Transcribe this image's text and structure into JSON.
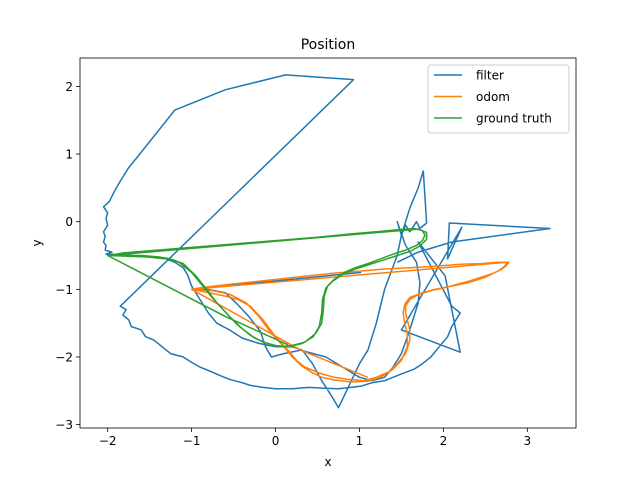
{
  "chart_data": {
    "type": "line",
    "title": "Position",
    "xlabel": "x",
    "ylabel": "y",
    "xlim": [
      -2.33,
      3.58
    ],
    "ylim": [
      -3.05,
      2.42
    ],
    "xticks": [
      -2,
      -1,
      0,
      1,
      2,
      3
    ],
    "yticks": [
      -3,
      -2,
      -1,
      0,
      1,
      2
    ],
    "grid": false,
    "legend_position": "upper-right",
    "series": [
      {
        "name": "filter",
        "color": "#1f77b4",
        "stroke_width": 1.5,
        "points": [
          [
            1.02,
            -0.75
          ],
          [
            -1.0,
            -1.0
          ],
          [
            -0.82,
            -1.0
          ],
          [
            -0.6,
            -1.05
          ],
          [
            -0.47,
            -1.2
          ],
          [
            -0.32,
            -1.4
          ],
          [
            -0.18,
            -1.62
          ],
          [
            -0.12,
            -1.85
          ],
          [
            -0.05,
            -2.0
          ],
          [
            0.1,
            -1.95
          ],
          [
            0.3,
            -1.9
          ],
          [
            0.45,
            -1.95
          ],
          [
            0.6,
            -2.0
          ],
          [
            0.8,
            -2.15
          ],
          [
            1.0,
            -2.3
          ],
          [
            1.15,
            -2.35
          ],
          [
            1.3,
            -2.3
          ],
          [
            1.4,
            -2.15
          ],
          [
            1.5,
            -1.95
          ],
          [
            1.6,
            -1.6
          ],
          [
            1.7,
            -1.2
          ],
          [
            1.72,
            -0.9
          ],
          [
            1.68,
            -0.6
          ],
          [
            1.55,
            -0.35
          ],
          [
            1.45,
            0.0
          ],
          [
            1.5,
            -0.2
          ],
          [
            1.55,
            -0.05
          ],
          [
            1.6,
            -0.15
          ],
          [
            1.68,
            0.0
          ],
          [
            1.72,
            -0.1
          ],
          [
            1.8,
            -0.02
          ],
          [
            1.76,
            0.75
          ],
          [
            1.7,
            0.5
          ],
          [
            1.6,
            0.2
          ],
          [
            1.5,
            -0.2
          ],
          [
            1.45,
            -0.5
          ],
          [
            1.3,
            -1.0
          ],
          [
            1.2,
            -1.5
          ],
          [
            1.1,
            -1.9
          ],
          [
            1.0,
            -2.1
          ],
          [
            0.75,
            -2.75
          ],
          [
            0.68,
            -2.6
          ],
          [
            0.55,
            -2.35
          ],
          [
            0.44,
            -2.1
          ],
          [
            0.32,
            -1.9
          ],
          [
            0.2,
            -1.85
          ],
          [
            0.0,
            -1.85
          ],
          [
            -0.2,
            -1.8
          ],
          [
            -0.4,
            -1.72
          ],
          [
            -0.55,
            -1.6
          ],
          [
            -0.7,
            -1.5
          ],
          [
            -0.8,
            -1.35
          ],
          [
            -0.9,
            -1.15
          ],
          [
            -1.0,
            -0.95
          ],
          [
            -1.05,
            -0.78
          ],
          [
            -1.1,
            -0.68
          ],
          [
            -1.2,
            -0.6
          ],
          [
            -1.3,
            -0.55
          ],
          [
            -1.5,
            -0.52
          ],
          [
            -1.7,
            -0.5
          ],
          [
            -1.9,
            -0.48
          ],
          [
            -2.02,
            -0.48
          ],
          [
            -1.95,
            -0.45
          ],
          [
            -2.03,
            -0.42
          ],
          [
            -2.02,
            -0.35
          ],
          [
            -2.05,
            -0.3
          ],
          [
            -2.03,
            -0.22
          ],
          [
            -2.05,
            -0.15
          ],
          [
            -2.0,
            -0.05
          ],
          [
            -2.02,
            0.05
          ],
          [
            -2.0,
            0.13
          ],
          [
            -2.05,
            0.22
          ],
          [
            -1.98,
            0.3
          ],
          [
            -1.92,
            0.45
          ],
          [
            -1.85,
            0.6
          ],
          [
            -1.75,
            0.8
          ],
          [
            -1.65,
            0.95
          ],
          [
            -1.2,
            1.65
          ],
          [
            -0.6,
            1.95
          ],
          [
            0.12,
            2.17
          ],
          [
            0.93,
            2.1
          ],
          [
            -1.85,
            -1.25
          ],
          [
            -1.78,
            -1.3
          ],
          [
            -1.82,
            -1.38
          ],
          [
            -1.75,
            -1.45
          ],
          [
            -1.72,
            -1.55
          ],
          [
            -1.6,
            -1.6
          ],
          [
            -1.55,
            -1.7
          ],
          [
            -1.45,
            -1.75
          ],
          [
            -1.35,
            -1.85
          ],
          [
            -1.25,
            -1.95
          ],
          [
            -1.1,
            -2.0
          ],
          [
            -1.0,
            -2.08
          ],
          [
            -0.9,
            -2.15
          ],
          [
            -0.8,
            -2.2
          ],
          [
            -0.65,
            -2.28
          ],
          [
            -0.55,
            -2.33
          ],
          [
            -0.4,
            -2.38
          ],
          [
            -0.3,
            -2.42
          ],
          [
            -0.15,
            -2.45
          ],
          [
            0.0,
            -2.47
          ],
          [
            0.2,
            -2.47
          ],
          [
            0.4,
            -2.45
          ],
          [
            0.55,
            -2.46
          ],
          [
            0.75,
            -2.47
          ],
          [
            0.9,
            -2.45
          ],
          [
            1.02,
            -2.43
          ],
          [
            1.15,
            -2.38
          ],
          [
            1.3,
            -2.35
          ],
          [
            1.5,
            -2.25
          ],
          [
            1.65,
            -2.18
          ],
          [
            1.75,
            -2.1
          ],
          [
            1.85,
            -2.0
          ],
          [
            1.95,
            -1.85
          ],
          [
            2.05,
            -1.7
          ],
          [
            2.1,
            -1.55
          ],
          [
            2.15,
            -1.45
          ],
          [
            2.2,
            -1.35
          ],
          [
            2.1,
            -1.25
          ],
          [
            1.7,
            -0.3
          ],
          [
            2.02,
            -0.8
          ],
          [
            2.2,
            -1.93
          ],
          [
            1.5,
            -1.6
          ],
          [
            2.22,
            -0.08
          ],
          [
            2.05,
            -0.55
          ],
          [
            2.07,
            -0.02
          ],
          [
            3.27,
            -0.1
          ],
          [
            2.1,
            -0.3
          ],
          [
            1.7,
            -0.45
          ],
          [
            1.45,
            -0.6
          ]
        ]
      },
      {
        "name": "odom",
        "color": "#ff7f0e",
        "stroke_width": 1.5,
        "points": [
          [
            -1.0,
            -1.0
          ],
          [
            -0.8,
            -1.05
          ],
          [
            -0.6,
            -1.1
          ],
          [
            -0.45,
            -1.15
          ],
          [
            -0.3,
            -1.25
          ],
          [
            -0.15,
            -1.45
          ],
          [
            0.0,
            -1.7
          ],
          [
            0.15,
            -1.9
          ],
          [
            0.25,
            -2.05
          ],
          [
            0.35,
            -2.15
          ],
          [
            0.45,
            -2.2
          ],
          [
            0.55,
            -2.25
          ],
          [
            0.7,
            -2.3
          ],
          [
            0.85,
            -2.33
          ],
          [
            1.05,
            -2.35
          ],
          [
            1.2,
            -2.3
          ],
          [
            1.35,
            -2.22
          ],
          [
            1.45,
            -2.1
          ],
          [
            1.55,
            -1.95
          ],
          [
            1.6,
            -1.75
          ],
          [
            1.6,
            -1.6
          ],
          [
            1.58,
            -1.5
          ],
          [
            1.55,
            -1.35
          ],
          [
            1.55,
            -1.25
          ],
          [
            1.6,
            -1.15
          ],
          [
            1.7,
            -1.08
          ],
          [
            1.85,
            -1.02
          ],
          [
            2.0,
            -0.98
          ],
          [
            2.15,
            -0.93
          ],
          [
            2.3,
            -0.88
          ],
          [
            2.45,
            -0.82
          ],
          [
            2.6,
            -0.76
          ],
          [
            2.7,
            -0.7
          ],
          [
            2.75,
            -0.65
          ],
          [
            2.78,
            -0.6
          ],
          [
            2.65,
            -0.6
          ],
          [
            2.45,
            -0.62
          ],
          [
            2.2,
            -0.63
          ],
          [
            1.9,
            -0.66
          ],
          [
            1.6,
            -0.68
          ],
          [
            1.3,
            -0.7
          ],
          [
            1.0,
            -0.73
          ],
          [
            0.7,
            -0.76
          ],
          [
            0.4,
            -0.8
          ],
          [
            0.1,
            -0.84
          ],
          [
            -0.2,
            -0.88
          ],
          [
            -0.5,
            -0.92
          ],
          [
            -0.85,
            -0.97
          ],
          [
            -1.0,
            -1.0
          ],
          [
            -0.75,
            -1.02
          ],
          [
            -0.55,
            -1.07
          ],
          [
            -0.35,
            -1.2
          ],
          [
            -0.2,
            -1.4
          ],
          [
            -0.05,
            -1.65
          ],
          [
            0.1,
            -1.85
          ],
          [
            0.2,
            -2.0
          ],
          [
            0.3,
            -2.12
          ],
          [
            0.42,
            -2.22
          ],
          [
            0.55,
            -2.3
          ],
          [
            0.7,
            -2.34
          ],
          [
            0.9,
            -2.37
          ],
          [
            1.1,
            -2.36
          ],
          [
            1.25,
            -2.3
          ],
          [
            1.4,
            -2.18
          ],
          [
            1.5,
            -2.05
          ],
          [
            1.57,
            -1.85
          ],
          [
            1.57,
            -1.65
          ],
          [
            1.54,
            -1.5
          ],
          [
            1.52,
            -1.35
          ],
          [
            1.54,
            -1.22
          ],
          [
            1.6,
            -1.12
          ],
          [
            1.75,
            -1.05
          ],
          [
            1.9,
            -1.0
          ],
          [
            2.1,
            -0.95
          ],
          [
            2.3,
            -0.9
          ],
          [
            2.5,
            -0.82
          ],
          [
            2.65,
            -0.73
          ],
          [
            2.73,
            -0.66
          ],
          [
            2.76,
            -0.6
          ],
          [
            -1.0,
            -1.0
          ],
          [
            0.3,
            -1.9
          ],
          [
            1.1,
            -2.3
          ]
        ]
      },
      {
        "name": "ground truth",
        "color": "#2ca02c",
        "stroke_width": 1.5,
        "points": [
          [
            -2.0,
            -0.5
          ],
          [
            -1.6,
            -0.5
          ],
          [
            -1.4,
            -0.52
          ],
          [
            -1.25,
            -0.55
          ],
          [
            -1.1,
            -0.62
          ],
          [
            -0.95,
            -0.8
          ],
          [
            -0.82,
            -1.0
          ],
          [
            -0.7,
            -1.2
          ],
          [
            -0.55,
            -1.4
          ],
          [
            -0.4,
            -1.58
          ],
          [
            -0.25,
            -1.72
          ],
          [
            -0.1,
            -1.8
          ],
          [
            0.05,
            -1.85
          ],
          [
            0.2,
            -1.83
          ],
          [
            0.35,
            -1.78
          ],
          [
            0.48,
            -1.65
          ],
          [
            0.55,
            -1.5
          ],
          [
            0.57,
            -1.3
          ],
          [
            0.58,
            -1.1
          ],
          [
            0.62,
            -0.95
          ],
          [
            0.7,
            -0.85
          ],
          [
            0.82,
            -0.75
          ],
          [
            0.95,
            -0.68
          ],
          [
            1.1,
            -0.62
          ],
          [
            1.25,
            -0.55
          ],
          [
            1.4,
            -0.48
          ],
          [
            1.55,
            -0.42
          ],
          [
            1.68,
            -0.35
          ],
          [
            1.75,
            -0.28
          ],
          [
            1.78,
            -0.2
          ],
          [
            1.75,
            -0.13
          ],
          [
            1.65,
            -0.1
          ],
          [
            1.45,
            -0.12
          ],
          [
            1.2,
            -0.15
          ],
          [
            0.9,
            -0.18
          ],
          [
            0.5,
            -0.23
          ],
          [
            0.0,
            -0.28
          ],
          [
            -0.5,
            -0.33
          ],
          [
            -1.0,
            -0.38
          ],
          [
            -1.5,
            -0.43
          ],
          [
            -1.8,
            -0.46
          ],
          [
            -2.0,
            -0.5
          ],
          [
            -1.55,
            -0.52
          ],
          [
            -1.3,
            -0.55
          ],
          [
            -1.15,
            -0.6
          ],
          [
            -1.0,
            -0.75
          ],
          [
            -0.88,
            -0.93
          ],
          [
            -0.75,
            -1.13
          ],
          [
            -0.6,
            -1.33
          ],
          [
            -0.45,
            -1.53
          ],
          [
            -0.3,
            -1.68
          ],
          [
            -0.15,
            -1.78
          ],
          [
            0.0,
            -1.83
          ],
          [
            0.15,
            -1.85
          ],
          [
            0.32,
            -1.8
          ],
          [
            0.45,
            -1.7
          ],
          [
            0.52,
            -1.55
          ],
          [
            0.55,
            -1.35
          ],
          [
            0.56,
            -1.15
          ],
          [
            0.6,
            -0.98
          ],
          [
            0.68,
            -0.88
          ],
          [
            0.8,
            -0.78
          ],
          [
            0.95,
            -0.7
          ],
          [
            1.1,
            -0.64
          ],
          [
            1.28,
            -0.57
          ],
          [
            1.45,
            -0.5
          ],
          [
            1.6,
            -0.44
          ],
          [
            1.72,
            -0.36
          ],
          [
            1.8,
            -0.26
          ],
          [
            1.8,
            -0.16
          ],
          [
            1.7,
            -0.11
          ],
          [
            -2.0,
            -0.5
          ],
          [
            -0.6,
            -1.4
          ],
          [
            0.15,
            -1.82
          ]
        ]
      }
    ]
  }
}
